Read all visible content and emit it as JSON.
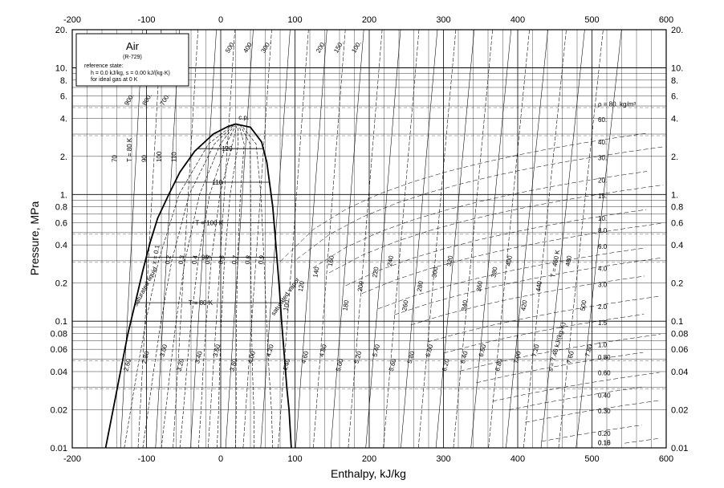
{
  "chart_data": {
    "type": "line",
    "title": "Air",
    "subtitle": "(R-729)",
    "reference_state": {
      "line1": "reference state:",
      "line2": "h = 0.0 kJ/kg, s = 0.00 kJ/(kg·K)",
      "line3": "for ideal gas at 0 K"
    },
    "xlabel": "Enthalpy, kJ/kg",
    "ylabel": "Pressure, MPa",
    "xlim": [
      -200,
      600
    ],
    "ylim": [
      0.01,
      20
    ],
    "y_scale": "log",
    "grid": true,
    "x_ticks": [
      "-200",
      "-100",
      "0",
      "100",
      "200",
      "300",
      "400",
      "500",
      "600"
    ],
    "y_ticks": [
      {
        "v": 20,
        "label": "20."
      },
      {
        "v": 10,
        "label": "10."
      },
      {
        "v": 8,
        "label": "8."
      },
      {
        "v": 6,
        "label": "6."
      },
      {
        "v": 4,
        "label": "4."
      },
      {
        "v": 2,
        "label": "2."
      },
      {
        "v": 1,
        "label": "1."
      },
      {
        "v": 0.8,
        "label": "0.8"
      },
      {
        "v": 0.6,
        "label": "0.6"
      },
      {
        "v": 0.4,
        "label": "0.4"
      },
      {
        "v": 0.2,
        "label": "0.2"
      },
      {
        "v": 0.1,
        "label": "0.1"
      },
      {
        "v": 0.08,
        "label": "0.08"
      },
      {
        "v": 0.06,
        "label": "0.06"
      },
      {
        "v": 0.04,
        "label": "0.04"
      },
      {
        "v": 0.02,
        "label": "0.02"
      },
      {
        "v": 0.01,
        "label": "0.01"
      }
    ],
    "saturation_dome": {
      "liquid": [
        [
          -155,
          0.01
        ],
        [
          -145,
          0.02
        ],
        [
          -135,
          0.04
        ],
        [
          -125,
          0.08
        ],
        [
          -115,
          0.14
        ],
        [
          -105,
          0.25
        ],
        [
          -95,
          0.42
        ],
        [
          -85,
          0.65
        ],
        [
          -70,
          1.0
        ],
        [
          -55,
          1.5
        ],
        [
          -35,
          2.2
        ],
        [
          -10,
          3.0
        ],
        [
          10,
          3.45
        ],
        [
          20,
          3.6
        ]
      ],
      "vapor": [
        [
          20,
          3.6
        ],
        [
          40,
          3.4
        ],
        [
          55,
          2.6
        ],
        [
          62,
          1.8
        ],
        [
          66,
          1.2
        ],
        [
          70,
          0.8
        ],
        [
          73,
          0.5
        ],
        [
          76,
          0.3
        ],
        [
          79,
          0.18
        ],
        [
          82,
          0.1
        ],
        [
          86,
          0.05
        ],
        [
          89,
          0.03
        ],
        [
          92,
          0.02
        ],
        [
          95,
          0.01
        ]
      ],
      "critical_point_label": "c.p.",
      "saturated_liquid_label": "saturated liquid",
      "saturated_vapor_label": "saturated vapor"
    },
    "quality_lines": {
      "labels": [
        "x = 0.1",
        "0.2",
        "0.3",
        "0.4",
        "0.5",
        "0.6",
        "0.7",
        "0.8",
        "0.9"
      ],
      "x": [
        0.1,
        0.2,
        0.3,
        0.4,
        0.5,
        0.6,
        0.7,
        0.8,
        0.9
      ]
    },
    "isotherms_in_dome": [
      {
        "label": "T = 80 K",
        "P": 0.14
      },
      {
        "label": "90",
        "P": 0.32
      },
      {
        "label": "T = 100 K",
        "P": 0.6
      },
      {
        "label": "110",
        "P": 1.25
      },
      {
        "label": "120",
        "P": 2.3
      }
    ],
    "isotherm_labels_vapor": [
      "70",
      "T = 80 K",
      "90",
      "100",
      "110",
      "100",
      "120",
      "140",
      "160",
      "180",
      "200",
      "220",
      "240",
      "260",
      "280",
      "300",
      "320",
      "340",
      "360",
      "380",
      "400",
      "420",
      "440",
      "T = 460 K",
      "480",
      "500"
    ],
    "isochores": {
      "labels": [
        "ρ = 80. kg/m³",
        "60.",
        "40.",
        "30.",
        "20.",
        "15.",
        "10.",
        "8.0",
        "6.0",
        "4.0",
        "3.0",
        "2.0",
        "1.5",
        "1.0",
        "0.80",
        "0.60",
        "0.40",
        "0.30",
        "0.20",
        "0.15",
        "0.10"
      ],
      "rho": [
        80,
        60,
        40,
        30,
        20,
        15,
        10,
        8,
        6,
        4,
        3,
        2,
        1.5,
        1.0,
        0.8,
        0.6,
        0.4,
        0.3,
        0.2,
        0.15,
        0.1
      ],
      "high_density_labels": [
        "900.",
        "800.",
        "700.",
        "600.",
        "500.",
        "400.",
        "300.",
        "200.",
        "150.",
        "100."
      ]
    },
    "isentropes": {
      "labels": [
        "2.60",
        "2.80",
        "3.00",
        "3.20",
        "3.40",
        "3.60",
        "3.80",
        "4.00",
        "4.20",
        "4.40",
        "4.60",
        "4.80",
        "5.00",
        "5.20",
        "5.40",
        "5.60",
        "5.80",
        "6.00",
        "6.20",
        "6.40",
        "6.60",
        "6.80",
        "7.00",
        "7.20",
        "s = 7.40 kJ/(kg·K)",
        "7.60",
        "7.80"
      ],
      "s": [
        2.6,
        2.8,
        3.0,
        3.2,
        3.4,
        3.6,
        3.8,
        4.0,
        4.2,
        4.4,
        4.6,
        4.8,
        5.0,
        5.2,
        5.4,
        5.6,
        5.8,
        6.0,
        6.2,
        6.4,
        6.6,
        6.8,
        7.0,
        7.2,
        7.4,
        7.6,
        7.8
      ]
    }
  }
}
